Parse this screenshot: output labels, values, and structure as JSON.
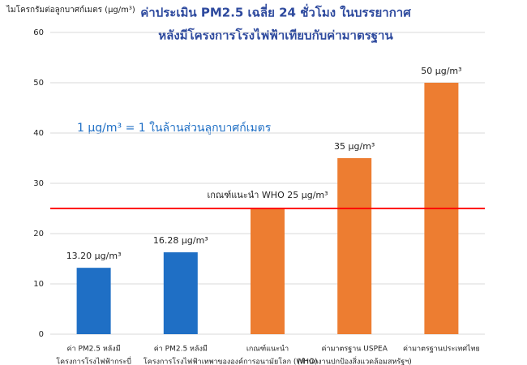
{
  "chart_data": {
    "type": "bar",
    "title": [
      "ค่าประเมิน PM2.5 เฉลี่ย 24 ชั่วโมง ในบรรยากาศ",
      "หลังมีโครงการโรงไฟฟ้าเทียบกับค่ามาตรฐาน"
    ],
    "y_label": "ไมโครกรัมต่อลูกบาศก์เมตร (µg/m³)",
    "categories": [
      [
        "ค่า PM2.5 หลังมี",
        "โครงการโรงไฟฟ้ากระบี่"
      ],
      [
        "ค่า PM2.5 หลังมี",
        "โครงการโรงไฟฟ้าเทพา"
      ],
      [
        "เกณฑ์แนะนำ",
        "ขององค์การอนามัยโลก (WHO)"
      ],
      [
        "ค่ามาตรฐาน  USPEA",
        "(สำนักงานปกป้องสิ่งแวดล้อมสหรัฐฯ)"
      ],
      [
        "ค่ามาตรฐานประเทศไทย"
      ]
    ],
    "values": [
      13.2,
      16.28,
      25,
      35,
      50
    ],
    "value_labels": [
      "13.20 µg/m³",
      "16.28 µg/m³",
      null,
      "35 µg/m³",
      "50 µg/m³"
    ],
    "colors": [
      "#1f6fc5",
      "#1f6fc5",
      "#ed7d31",
      "#ed7d31",
      "#ed7d31"
    ],
    "reference_line": {
      "value": 25,
      "label": "เกณฑ์แนะนำ WHO 25 µg/m³",
      "color": "#ff0000"
    },
    "annotation": "1 µg/m³ = 1 ในล้านส่วนลูกบาศก์เมตร",
    "ylim": [
      0,
      60
    ],
    "yticks": [
      0,
      10,
      20,
      30,
      40,
      50,
      60
    ],
    "grid": true
  }
}
